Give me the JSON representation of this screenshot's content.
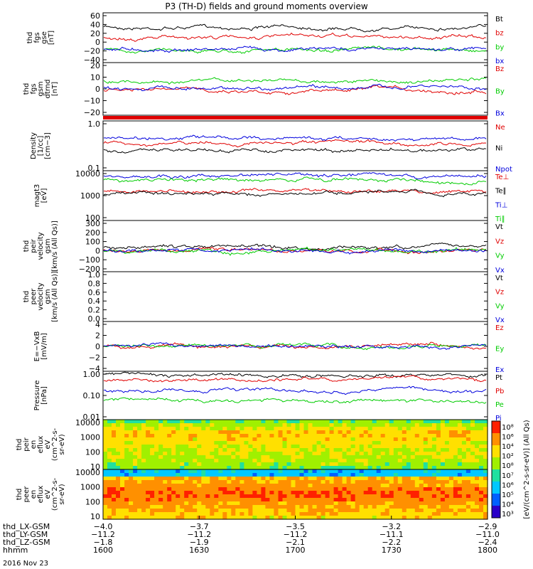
{
  "title": "P3 (TH-D) fields and ground moments overview",
  "date_label": "2016 Nov 23",
  "colors": {
    "black": "#000000",
    "red": "#e00000",
    "green": "#00cc00",
    "blue": "#0000dd"
  },
  "chart_data": [
    {
      "id": "p1",
      "type": "line",
      "ylabel": [
        "thd",
        "fgs",
        "gse",
        "[nT]"
      ],
      "ylim": [
        -40,
        60
      ],
      "yticks": [
        "60",
        "40",
        "20",
        "0",
        "−20",
        "−40"
      ],
      "series": [
        {
          "name": "Bt",
          "color": "#000000",
          "level": 34
        },
        {
          "name": "bz",
          "color": "#e00000",
          "level": 12
        },
        {
          "name": "by",
          "color": "#00cc00",
          "level": -18
        },
        {
          "name": "bx",
          "color": "#0000dd",
          "level": -15
        }
      ]
    },
    {
      "id": "p2",
      "type": "line",
      "ylabel": [
        "thd",
        "fgs",
        "gsm",
        "dtrnd",
        "[nT]"
      ],
      "ylim": [
        -25,
        20
      ],
      "yticks": [
        "20",
        "10",
        "0",
        "−10",
        "−20"
      ],
      "series": [
        {
          "name": "Bz",
          "color": "#e00000",
          "level": -4
        },
        {
          "name": "By",
          "color": "#00cc00",
          "level": 5
        },
        {
          "name": "Bx",
          "color": "#0000dd",
          "level": -1
        }
      ]
    },
    {
      "id": "p3",
      "type": "line",
      "log": true,
      "ylabel": [
        "Density",
        "[1/cc]",
        "[cm−3]"
      ],
      "ylim": [
        0.1,
        1.0
      ],
      "yticks": [
        "1.0",
        "0.1"
      ],
      "series": [
        {
          "name": "Ne",
          "color": "#e00000",
          "level": 0.35
        },
        {
          "name": "Ni",
          "color": "#000000",
          "level": 0.25
        },
        {
          "name": "Npot",
          "color": "#0000dd",
          "level": 0.48
        }
      ]
    },
    {
      "id": "p4",
      "type": "line",
      "log": true,
      "ylabel": [
        "magt3",
        "[eV]"
      ],
      "ylim": [
        100,
        10000
      ],
      "yticks": [
        "10000",
        "1000",
        "100"
      ],
      "series": [
        {
          "name": "Te⊥",
          "color": "#e00000",
          "level": 1600
        },
        {
          "name": "Te∥",
          "color": "#000000",
          "level": 1200
        },
        {
          "name": "Ti⊥",
          "color": "#0000dd",
          "level": 7500
        },
        {
          "name": "Ti∥",
          "color": "#00cc00",
          "level": 5000
        }
      ]
    },
    {
      "id": "p5",
      "type": "line",
      "ylabel": [
        "thd",
        "peir",
        "velocity",
        "gsm",
        "[km/s (All Qs)]"
      ],
      "ylim": [
        -200,
        300
      ],
      "yticks": [
        "300",
        "200",
        "100",
        "0",
        "−100",
        "−200"
      ],
      "series": [
        {
          "name": "Vt",
          "color": "#000000",
          "level": 40
        },
        {
          "name": "Vz",
          "color": "#e00000",
          "level": 0
        },
        {
          "name": "Vy",
          "color": "#00cc00",
          "level": 0
        },
        {
          "name": "Vx",
          "color": "#0000dd",
          "level": 0
        }
      ]
    },
    {
      "id": "p6",
      "type": "line",
      "ylabel": [
        "thd",
        "peer",
        "velocity",
        "gsm",
        "[km/s (All Qs)]"
      ],
      "ylim": [
        0,
        1.0
      ],
      "yticks": [
        "1.0",
        "0.8",
        "0.6",
        "0.4",
        "0.2",
        "0.0"
      ],
      "series": [
        {
          "name": "Vt",
          "color": "#000000"
        },
        {
          "name": "Vz",
          "color": "#e00000"
        },
        {
          "name": "Vy",
          "color": "#00cc00"
        },
        {
          "name": "Vx",
          "color": "#0000dd"
        }
      ]
    },
    {
      "id": "p7",
      "type": "line",
      "ylabel": [
        "E=−VxB",
        "[mV/m]"
      ],
      "ylim": [
        -4,
        4
      ],
      "yticks": [
        "4",
        "2",
        "0",
        "−2",
        "−4"
      ],
      "series": [
        {
          "name": "Ez",
          "color": "#e00000",
          "level": 0
        },
        {
          "name": "Ey",
          "color": "#00cc00",
          "level": 0
        },
        {
          "name": "Ex",
          "color": "#0000dd",
          "level": 0
        }
      ]
    },
    {
      "id": "p8",
      "type": "line",
      "log": true,
      "ylabel": [
        "Pressure",
        "[nPa]"
      ],
      "ylim": [
        0.01,
        1.0
      ],
      "yticks": [
        "1.00",
        "0.10",
        "0.01"
      ],
      "series": [
        {
          "name": "Pt",
          "color": "#000000",
          "level": 0.9
        },
        {
          "name": "Pb",
          "color": "#e00000",
          "level": 0.55
        },
        {
          "name": "Pe",
          "color": "#00cc00",
          "level": 0.06
        },
        {
          "name": "Pi",
          "color": "#0000dd",
          "level": 0.18
        }
      ]
    },
    {
      "id": "p9",
      "type": "heatmap",
      "ylabel": [
        "thd",
        "peir",
        "en",
        "eflux",
        "eV",
        "(cm^2-s-",
        "sr-eV)"
      ],
      "yticks": [
        "10000",
        "1000",
        "100",
        "10"
      ]
    },
    {
      "id": "p10",
      "type": "heatmap",
      "ylabel": [
        "thd",
        "peer",
        "en",
        "eflux",
        "eV",
        "(cm^2-s-",
        "sr-eV)"
      ],
      "yticks": [
        "10000",
        "1000",
        "100",
        "10"
      ]
    }
  ],
  "colorbar": {
    "label": "[eV/(cm^2-s-sr-eV)] (All Qs)",
    "ticks": [
      "10⁸",
      "10⁶",
      "10⁴",
      "10²",
      "10⁸",
      "10⁷",
      "10⁶",
      "10⁵",
      "10⁴",
      "10³"
    ]
  },
  "xaxis": {
    "rows": [
      {
        "label": "thd_LX-GSM",
        "values": [
          "−4.0",
          "−3.7",
          "−3.5",
          "−3.2",
          "−2.9"
        ]
      },
      {
        "label": "thd_LY-GSM",
        "values": [
          "−11.2",
          "−11.2",
          "−11.2",
          "−11.1",
          "−11.0"
        ]
      },
      {
        "label": "thd_LZ-GSM",
        "values": [
          "−1.8",
          "−1.9",
          "−2.1",
          "−2.2",
          "−2.4"
        ]
      },
      {
        "label": "hhmm",
        "values": [
          "1600",
          "1630",
          "1700",
          "1730",
          "1800"
        ]
      }
    ]
  }
}
